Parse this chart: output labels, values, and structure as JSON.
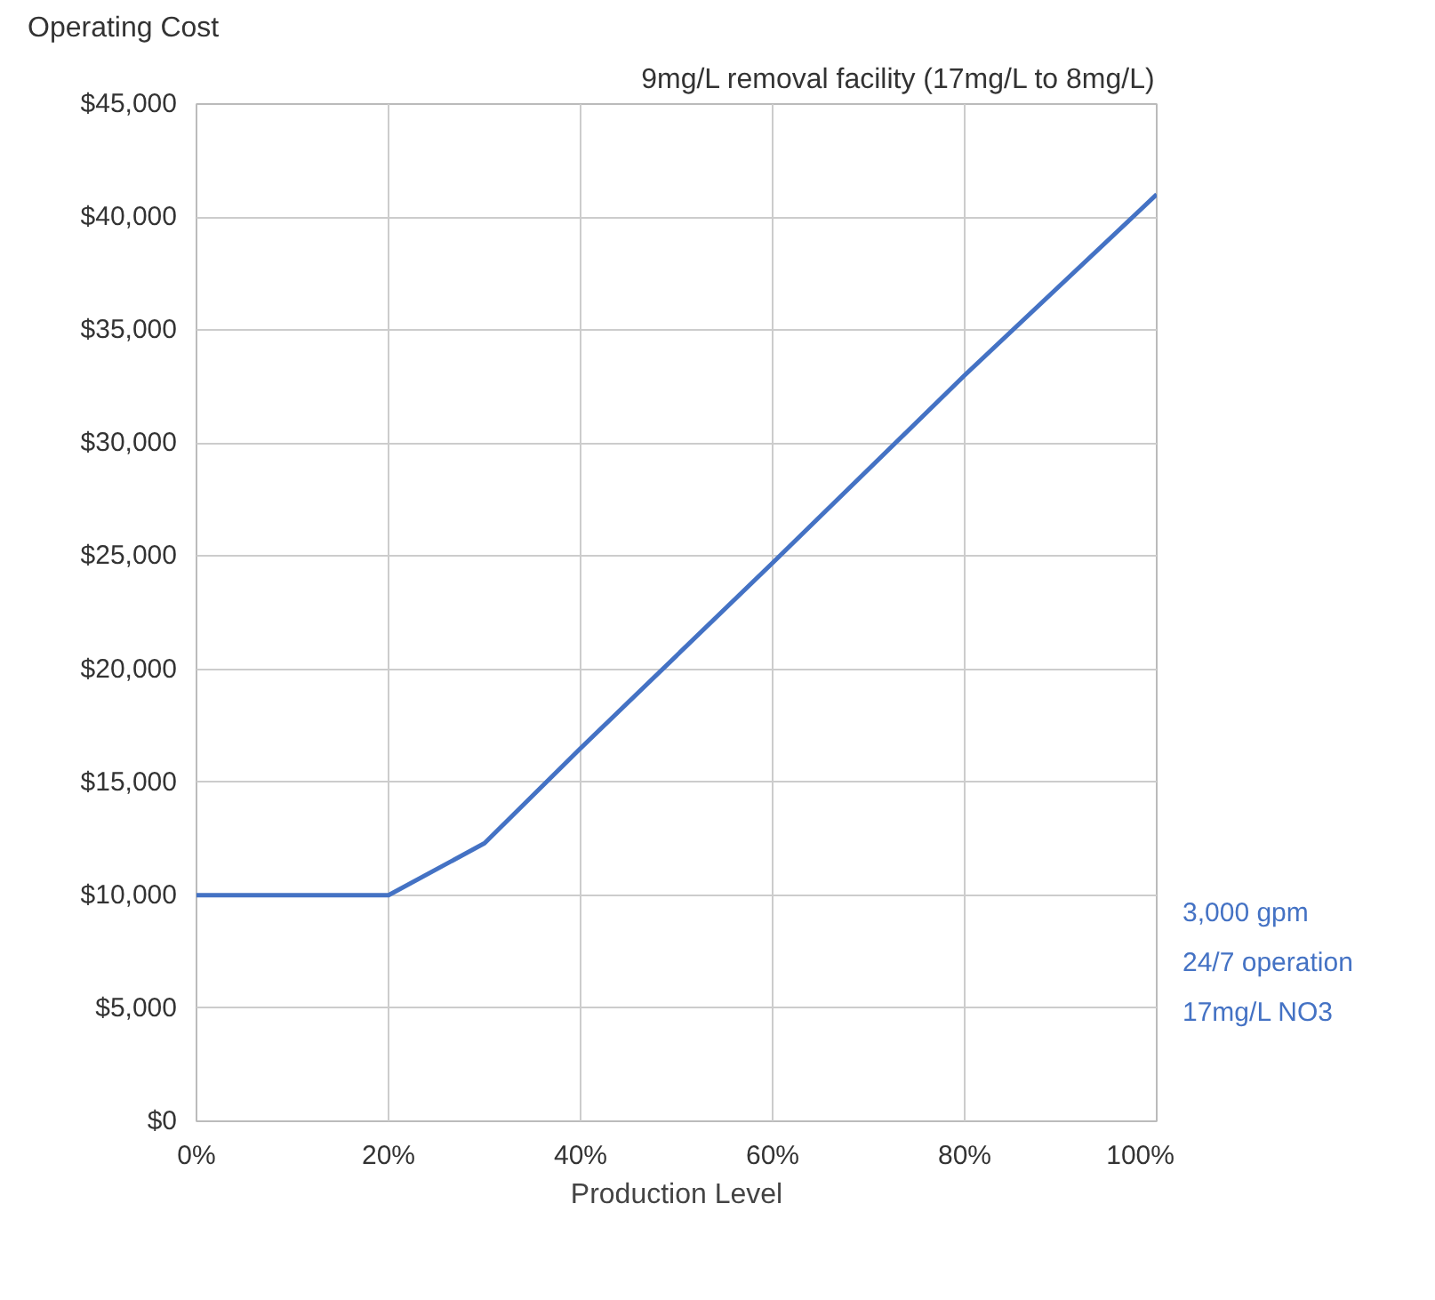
{
  "chart_data": {
    "type": "line",
    "title": "9mg/L removal facility (17mg/L to 8mg/L)",
    "ylabel": "Operating Cost",
    "xlabel": "Production Level",
    "x": [
      0,
      20,
      30,
      40,
      60,
      80,
      100
    ],
    "series": [
      {
        "color": "#4472c4",
        "values": [
          10000,
          10000,
          12300,
          16500,
          24700,
          33000,
          41000
        ]
      }
    ],
    "xlim": [
      0,
      100
    ],
    "ylim": [
      0,
      45000
    ],
    "xticks": [
      {
        "value": 0,
        "label": "0%"
      },
      {
        "value": 20,
        "label": "20%"
      },
      {
        "value": 40,
        "label": "40%"
      },
      {
        "value": 60,
        "label": "60%"
      },
      {
        "value": 80,
        "label": "80%"
      },
      {
        "value": 100,
        "label": "100%"
      }
    ],
    "yticks": [
      {
        "value": 0,
        "label": "$0"
      },
      {
        "value": 5000,
        "label": "$5,000"
      },
      {
        "value": 10000,
        "label": "$10,000"
      },
      {
        "value": 15000,
        "label": "$15,000"
      },
      {
        "value": 20000,
        "label": "$20,000"
      },
      {
        "value": 25000,
        "label": "$25,000"
      },
      {
        "value": 30000,
        "label": "$30,000"
      },
      {
        "value": 35000,
        "label": "$35,000"
      },
      {
        "value": 40000,
        "label": "$40,000"
      },
      {
        "value": 45000,
        "label": "$45,000"
      }
    ],
    "grid": true,
    "line_style": "solid",
    "marker": "none",
    "annotations": [
      "3,000 gpm",
      "24/7 operation",
      "17mg/L NO3"
    ]
  }
}
